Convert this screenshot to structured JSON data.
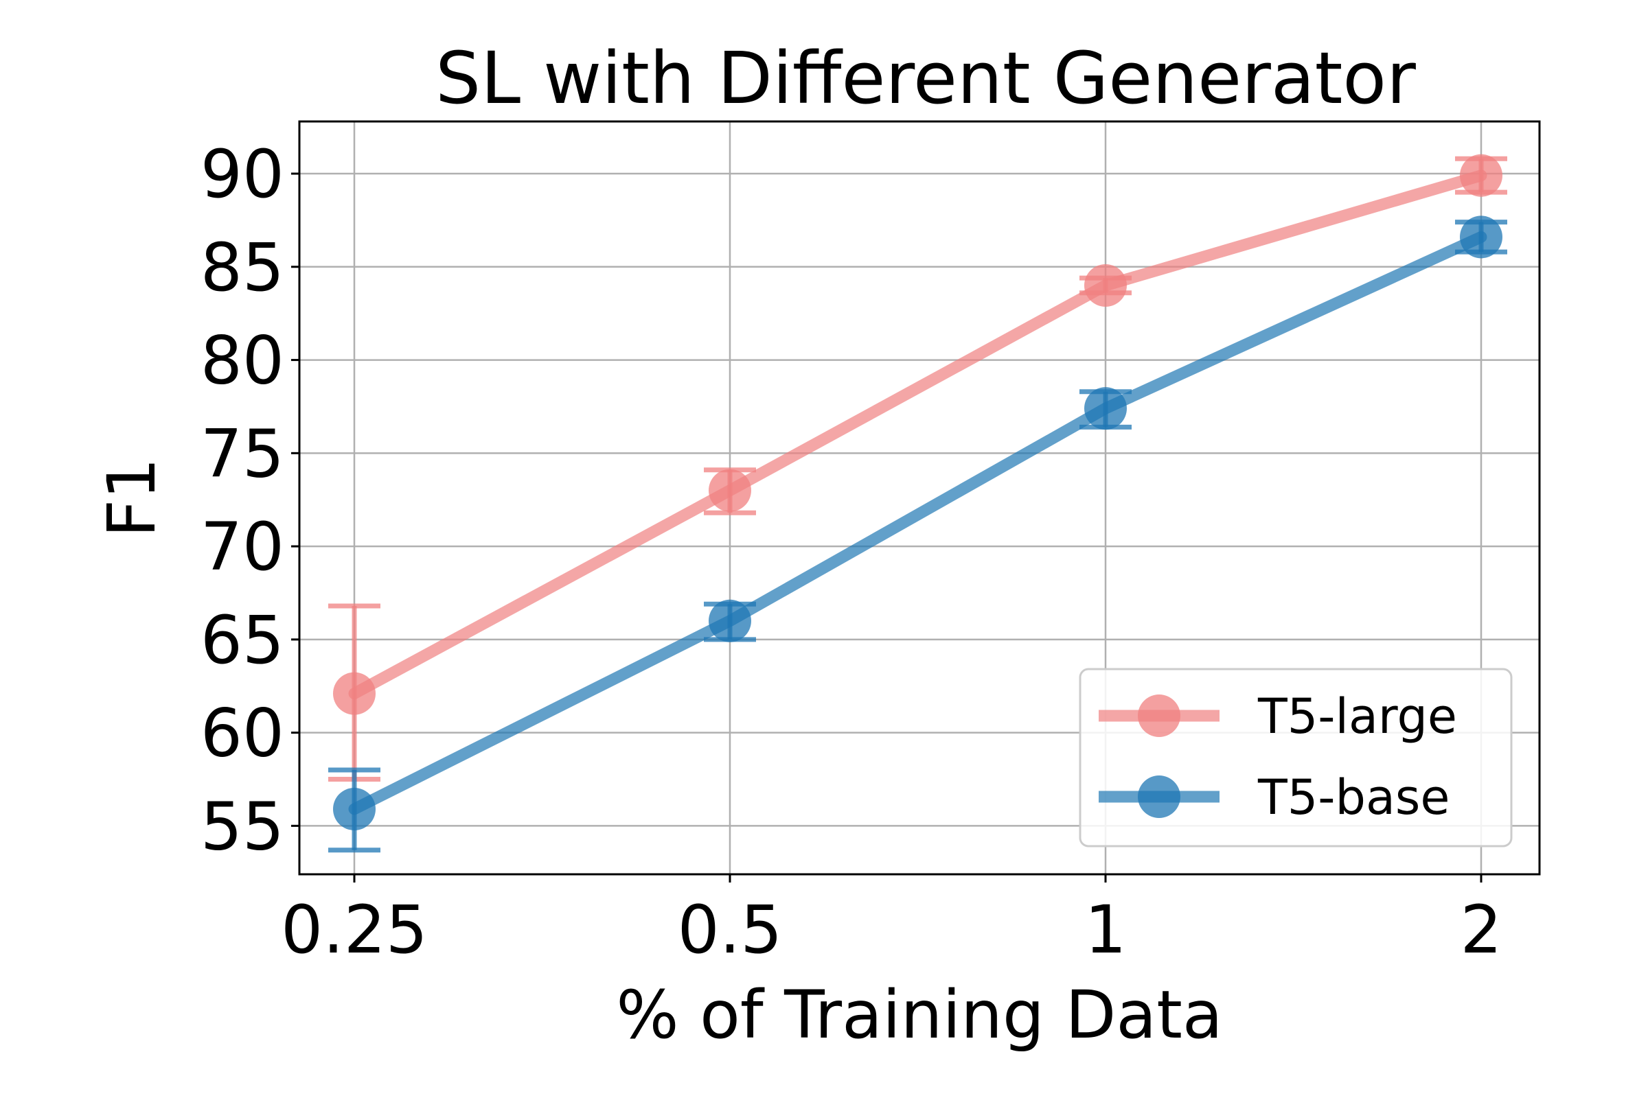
{
  "chart_data": {
    "type": "line",
    "title": "SL with Different Generator",
    "xlabel": "% of Training Data",
    "ylabel": "F1",
    "categories": [
      "0.25",
      "0.5",
      "1",
      "2"
    ],
    "x_scale": "log2",
    "yticks": [
      55,
      60,
      65,
      70,
      75,
      80,
      85,
      90
    ],
    "ylim": [
      52.4,
      92.8
    ],
    "grid": true,
    "legend_position": "lower-right",
    "series": [
      {
        "name": "T5-large",
        "color": "#f08080",
        "values": [
          62.1,
          73.0,
          84.0,
          89.9
        ],
        "error_low": [
          57.5,
          71.8,
          83.6,
          89.0
        ],
        "error_high": [
          66.8,
          74.1,
          84.4,
          90.8
        ]
      },
      {
        "name": "T5-base",
        "color": "#1f77b4",
        "values": [
          55.9,
          66.0,
          77.4,
          86.6
        ],
        "error_low": [
          53.7,
          65.0,
          76.4,
          85.8
        ],
        "error_high": [
          58.0,
          66.9,
          78.3,
          87.4
        ]
      }
    ]
  }
}
